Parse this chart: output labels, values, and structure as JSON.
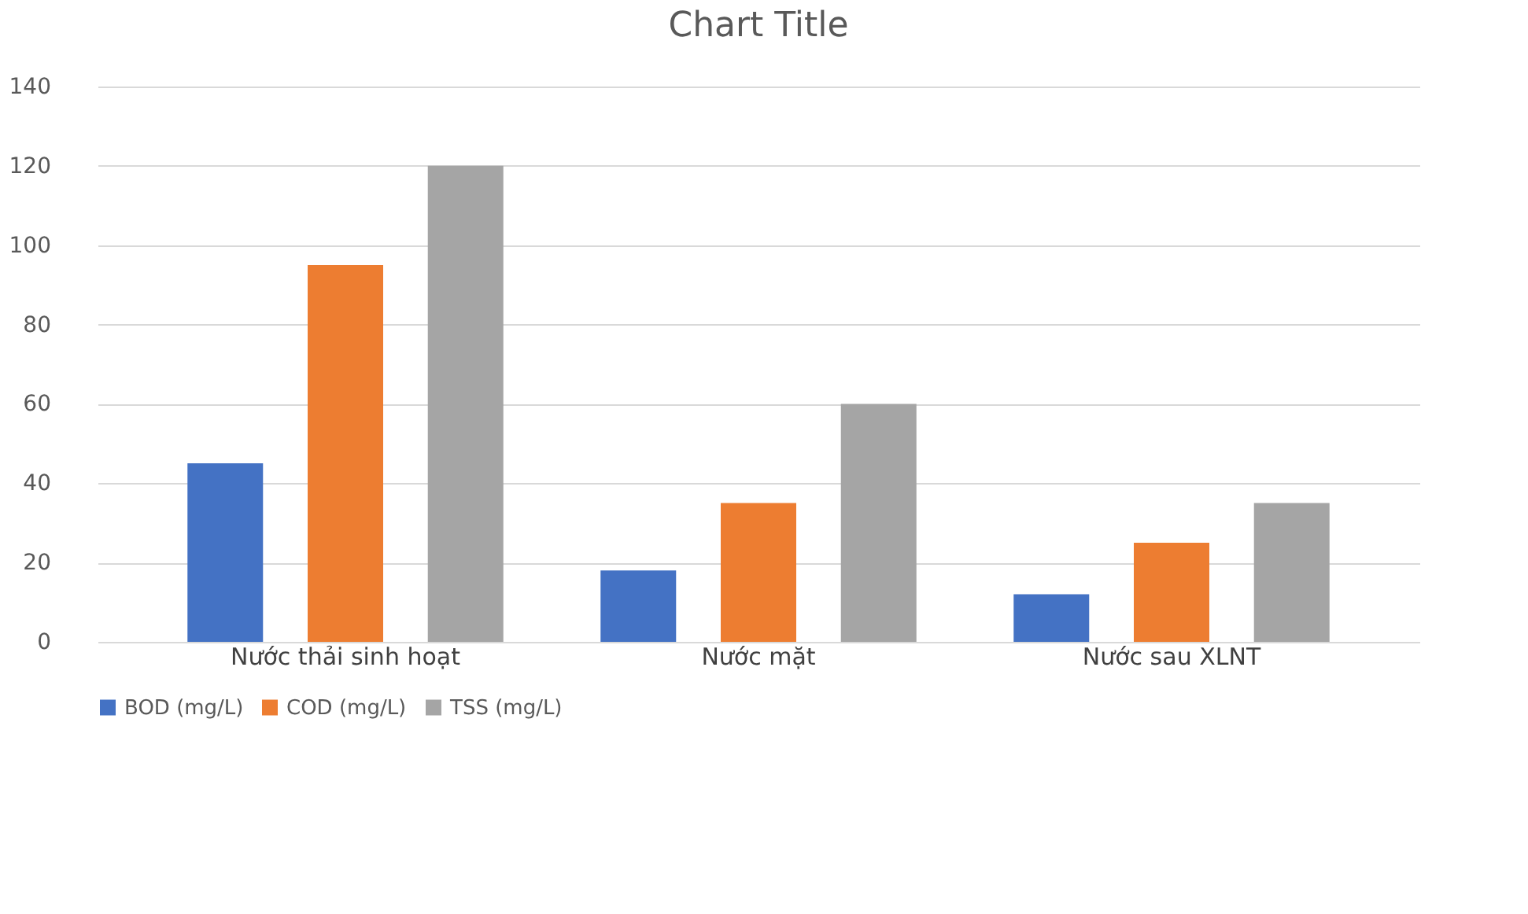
{
  "chart_data": {
    "type": "bar",
    "title": "Chart Title",
    "categories": [
      "Nước thải sinh hoạt",
      "Nước mặt",
      "Nước sau XLNT"
    ],
    "series": [
      {
        "name": "BOD (mg/L)",
        "color": "#4472c4",
        "values": [
          45,
          18,
          12
        ]
      },
      {
        "name": "COD (mg/L)",
        "color": "#ed7d31",
        "values": [
          95,
          35,
          25
        ]
      },
      {
        "name": "TSS (mg/L)",
        "color": "#a5a5a5",
        "values": [
          120,
          60,
          35
        ]
      }
    ],
    "ylim": [
      0,
      140
    ],
    "yticks": [
      0,
      20,
      40,
      60,
      80,
      100,
      120,
      140
    ],
    "grid": "y",
    "legend": "bottom"
  }
}
